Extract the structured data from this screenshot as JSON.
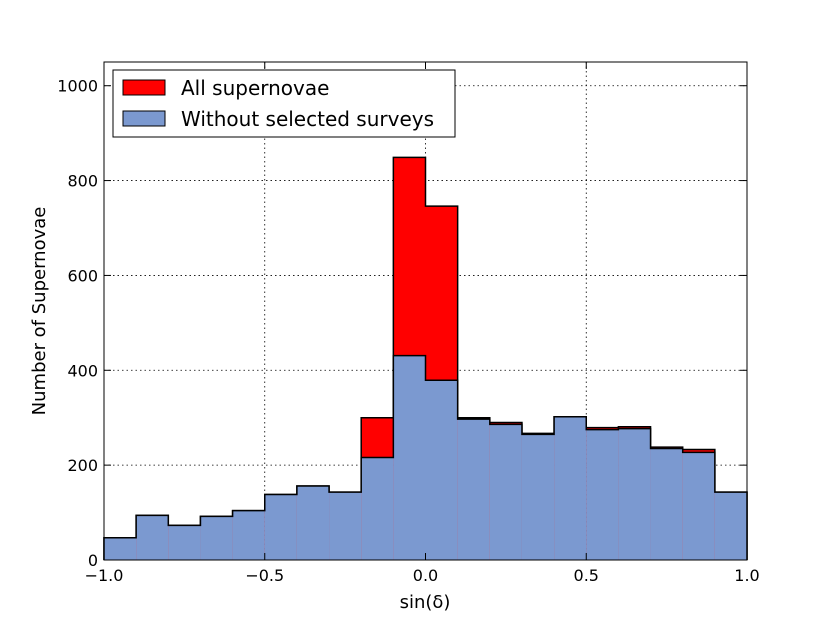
{
  "chart_data": {
    "type": "histogram",
    "xlabel": "sin(δ)",
    "ylabel": "Number of Supernovae",
    "xlim": [
      -1.0,
      1.0
    ],
    "ylim": [
      0,
      1050
    ],
    "xticks": [
      -1.0,
      -0.5,
      0.0,
      0.5,
      1.0
    ],
    "xtick_labels": [
      "−1.0",
      "−0.5",
      "0.0",
      "0.5",
      "1.0"
    ],
    "yticks": [
      0,
      200,
      400,
      600,
      800,
      1000
    ],
    "ytick_labels": [
      "0",
      "200",
      "400",
      "600",
      "800",
      "1000"
    ],
    "grid": true,
    "legend_position": "top-left",
    "bin_edges": [
      -1.0,
      -0.9,
      -0.8,
      -0.7,
      -0.6,
      -0.5,
      -0.4,
      -0.3,
      -0.2,
      -0.1,
      0.0,
      0.1,
      0.2,
      0.3,
      0.4,
      0.5,
      0.6,
      0.7,
      0.8,
      0.9,
      1.0
    ],
    "series": [
      {
        "name": "All supernovae",
        "color": "#ff0000",
        "values": [
          47,
          94,
          73,
          92,
          104,
          138,
          156,
          143,
          300,
          849,
          746,
          300,
          290,
          267,
          302,
          279,
          281,
          238,
          233,
          143
        ]
      },
      {
        "name": "Without selected surveys",
        "color": "#7b99d0",
        "values": [
          47,
          94,
          73,
          92,
          104,
          138,
          156,
          143,
          216,
          431,
          379,
          297,
          286,
          265,
          302,
          275,
          277,
          235,
          227,
          143
        ]
      }
    ]
  }
}
